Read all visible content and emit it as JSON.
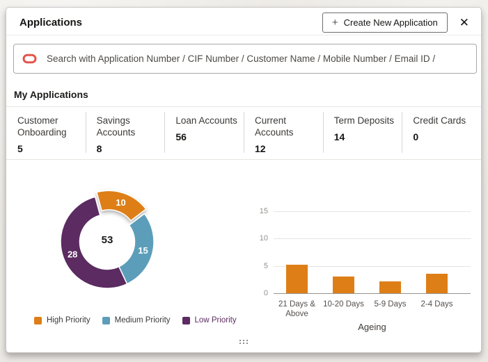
{
  "window": {
    "title": "Applications",
    "plus_icon": "+",
    "create_button_label": "Create New Application",
    "close_icon": "✕"
  },
  "search": {
    "placeholder": "Search with Application Number / CIF Number / Customer Name / Mobile Number / Email ID /",
    "logo_color": "#e3544d"
  },
  "section": {
    "title": "My Applications"
  },
  "stats": [
    {
      "label": "Customer Onboarding",
      "value": "5"
    },
    {
      "label": "Savings Accounts",
      "value": "8"
    },
    {
      "label": "Loan Accounts",
      "value": "56"
    },
    {
      "label": "Current Accounts",
      "value": "12"
    },
    {
      "label": "Term Deposits",
      "value": "14"
    },
    {
      "label": "Credit Cards",
      "value": "0"
    }
  ],
  "chart_data": [
    {
      "type": "pie",
      "subtype": "donut",
      "title": "",
      "total_label": "53",
      "start_angle_deg": -15,
      "legend_position": "bottom",
      "slices": [
        {
          "label": "High Priority",
          "value": 10,
          "color": "#de7e17",
          "legend_text_color": "#3b3936",
          "exploded": true
        },
        {
          "label": "Medium Priority",
          "value": 15,
          "color": "#5c9eb9",
          "legend_text_color": "#3b3936",
          "exploded": false
        },
        {
          "label": "Low Priority",
          "value": 28,
          "color": "#5b2b61",
          "legend_text_color": "#5b2b61",
          "exploded": false
        }
      ]
    },
    {
      "type": "bar",
      "categories": [
        "21 Days & Above",
        "10-20 Days",
        "5-9 Days",
        "2-4 Days"
      ],
      "values": [
        5.2,
        3,
        2.1,
        3.6
      ],
      "bar_color": "#de7e17",
      "title": "",
      "xlabel": "Ageing",
      "ylabel": "",
      "ylim": [
        0,
        15
      ],
      "yticks": [
        0,
        5,
        10,
        15
      ],
      "grid": true,
      "legend_position": "none"
    }
  ]
}
